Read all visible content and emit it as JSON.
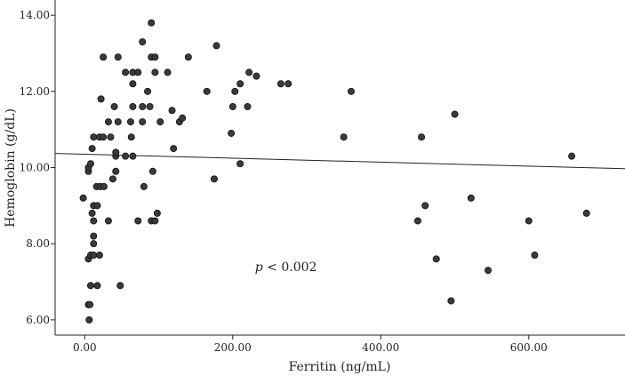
{
  "chart_data": {
    "type": "scatter",
    "title": "",
    "xlabel": "Ferritin (ng/mL)",
    "ylabel": "Hemoglobin (g/dL)",
    "xlim": [
      -40,
      730
    ],
    "ylim": [
      5.6,
      14.4
    ],
    "xticks": [
      {
        "value": 0,
        "label": "0.00"
      },
      {
        "value": 200,
        "label": "200.00"
      },
      {
        "value": 400,
        "label": "400.00"
      },
      {
        "value": 600,
        "label": "600.00"
      }
    ],
    "yticks": [
      {
        "value": 6,
        "label": "6.00"
      },
      {
        "value": 8,
        "label": "8.00"
      },
      {
        "value": 10,
        "label": "10.00"
      },
      {
        "value": 12,
        "label": "12.00"
      },
      {
        "value": 14,
        "label": "14.00"
      }
    ],
    "grid": false,
    "point_color": "#3a3a3a",
    "fit_line": {
      "x": [
        -40,
        730
      ],
      "y": [
        10.37,
        9.97
      ]
    },
    "annotation": {
      "p_symbol": "p",
      "text": " < 0.002",
      "x": 230,
      "y": 7.4
    },
    "points": [
      [
        6,
        6.0
      ],
      [
        5,
        6.4
      ],
      [
        7,
        6.4
      ],
      [
        8,
        6.9
      ],
      [
        17,
        6.9
      ],
      [
        48,
        6.9
      ],
      [
        5,
        7.6
      ],
      [
        8,
        7.7
      ],
      [
        12,
        7.7
      ],
      [
        20,
        7.7
      ],
      [
        12,
        8.0
      ],
      [
        12,
        8.2
      ],
      [
        12,
        8.6
      ],
      [
        32,
        8.6
      ],
      [
        72,
        8.6
      ],
      [
        90,
        8.6
      ],
      [
        95,
        8.6
      ],
      [
        10,
        8.8
      ],
      [
        98,
        8.8
      ],
      [
        12,
        9.0
      ],
      [
        17,
        9.0
      ],
      [
        -2,
        9.2
      ],
      [
        16,
        9.5
      ],
      [
        21,
        9.5
      ],
      [
        26,
        9.5
      ],
      [
        80,
        9.5
      ],
      [
        38,
        9.7
      ],
      [
        175,
        9.7
      ],
      [
        5,
        9.9
      ],
      [
        42,
        9.9
      ],
      [
        92,
        9.9
      ],
      [
        5,
        10.0
      ],
      [
        8,
        10.1
      ],
      [
        210,
        10.1
      ],
      [
        42,
        10.3
      ],
      [
        55,
        10.3
      ],
      [
        65,
        10.3
      ],
      [
        42,
        10.4
      ],
      [
        120,
        10.5
      ],
      [
        10,
        10.5
      ],
      [
        12,
        10.8
      ],
      [
        20,
        10.8
      ],
      [
        25,
        10.8
      ],
      [
        35,
        10.8
      ],
      [
        63,
        10.8
      ],
      [
        350,
        10.8
      ],
      [
        455,
        10.8
      ],
      [
        198,
        10.9
      ],
      [
        32,
        11.2
      ],
      [
        45,
        11.2
      ],
      [
        62,
        11.2
      ],
      [
        78,
        11.2
      ],
      [
        102,
        11.2
      ],
      [
        128,
        11.2
      ],
      [
        132,
        11.3
      ],
      [
        500,
        11.4
      ],
      [
        40,
        11.6
      ],
      [
        65,
        11.6
      ],
      [
        78,
        11.6
      ],
      [
        88,
        11.6
      ],
      [
        200,
        11.6
      ],
      [
        220,
        11.6
      ],
      [
        22,
        11.8
      ],
      [
        118,
        11.5
      ],
      [
        85,
        12.0
      ],
      [
        165,
        12.0
      ],
      [
        203,
        12.0
      ],
      [
        360,
        12.0
      ],
      [
        65,
        12.2
      ],
      [
        210,
        12.2
      ],
      [
        265,
        12.2
      ],
      [
        275,
        12.2
      ],
      [
        55,
        12.5
      ],
      [
        65,
        12.5
      ],
      [
        72,
        12.5
      ],
      [
        95,
        12.5
      ],
      [
        112,
        12.5
      ],
      [
        222,
        12.5
      ],
      [
        232,
        12.4
      ],
      [
        25,
        12.9
      ],
      [
        45,
        12.9
      ],
      [
        90,
        12.9
      ],
      [
        95,
        12.9
      ],
      [
        140,
        12.9
      ],
      [
        78,
        13.3
      ],
      [
        178,
        13.2
      ],
      [
        90,
        13.8
      ],
      [
        450,
        8.6
      ],
      [
        460,
        9.0
      ],
      [
        475,
        7.6
      ],
      [
        495,
        6.5
      ],
      [
        522,
        9.2
      ],
      [
        545,
        7.3
      ],
      [
        600,
        8.6
      ],
      [
        608,
        7.7
      ],
      [
        658,
        10.3
      ],
      [
        678,
        8.8
      ]
    ]
  }
}
